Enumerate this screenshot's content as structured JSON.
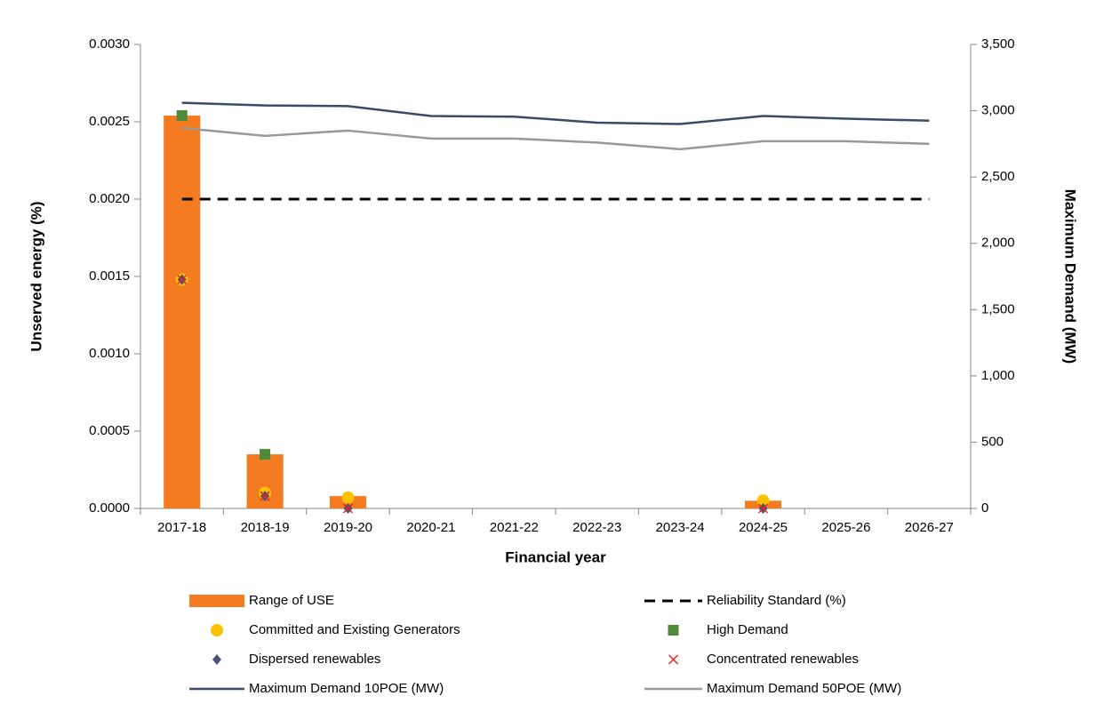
{
  "chart_data": {
    "type": "combo",
    "xlabel": "Financial year",
    "ylabel": "Unserved energy (%)",
    "y2label": "Maximum Demand (MW)",
    "categories": [
      "2017-18",
      "2018-19",
      "2019-20",
      "2020-21",
      "2021-22",
      "2022-23",
      "2023-24",
      "2024-25",
      "2025-26",
      "2026-27"
    ],
    "ylim": [
      0,
      0.003
    ],
    "yticks": [
      {
        "value": 0,
        "label": "0.0000"
      },
      {
        "value": 0.0005,
        "label": "0.0005"
      },
      {
        "value": 0.001,
        "label": "0.0010"
      },
      {
        "value": 0.0015,
        "label": "0.0015"
      },
      {
        "value": 0.002,
        "label": "0.0020"
      },
      {
        "value": 0.0025,
        "label": "0.0025"
      },
      {
        "value": 0.003,
        "label": "0.0030"
      }
    ],
    "y2lim": [
      0,
      3500
    ],
    "y2ticks": [
      0,
      500,
      {
        "value": 1000,
        "label": "1,000"
      },
      {
        "value": 1500,
        "label": "1,500"
      },
      {
        "value": 2000,
        "label": "2,000"
      },
      {
        "value": 2500,
        "label": "2,500"
      },
      {
        "value": 3000,
        "label": "3,000"
      },
      {
        "value": 3500,
        "label": "3,500"
      }
    ],
    "series": [
      {
        "name": "Range of USE",
        "type": "bar",
        "color": "#f47b20",
        "values": [
          0.00254,
          0.00035,
          8e-05,
          0,
          0,
          0,
          0,
          5e-05,
          0,
          0
        ]
      },
      {
        "name": "Reliability Standard (%)",
        "type": "line",
        "dash": true,
        "color": "#000000",
        "values": [
          0.002,
          0.002,
          0.002,
          0.002,
          0.002,
          0.002,
          0.002,
          0.002,
          0.002,
          0.002
        ]
      },
      {
        "name": "Committed and Existing Generators",
        "type": "scatter",
        "marker": "circle",
        "color": "#ffc000",
        "values": [
          0.00148,
          0.0001,
          7e-05,
          null,
          null,
          null,
          null,
          5e-05,
          null,
          null
        ]
      },
      {
        "name": "High Demand",
        "type": "scatter",
        "marker": "square",
        "color": "#4e8a3a",
        "values": [
          0.00254,
          0.00035,
          null,
          null,
          null,
          null,
          null,
          null,
          null,
          null
        ]
      },
      {
        "name": "Dispersed renewables",
        "type": "scatter",
        "marker": "diamond",
        "color": "#4a5478",
        "values": [
          0.00148,
          8e-05,
          0,
          null,
          null,
          null,
          null,
          0,
          null,
          null
        ]
      },
      {
        "name": "Concentrated renewables",
        "type": "scatter",
        "marker": "x",
        "color": "#e8251f",
        "values": [
          0.00148,
          8e-05,
          0,
          null,
          null,
          null,
          null,
          0,
          null,
          null
        ]
      },
      {
        "name": "Maximum Demand 10POE (MW)",
        "type": "line",
        "axis": "y2",
        "color": "#3b4a6b",
        "values": [
          3060,
          3040,
          3035,
          2960,
          2955,
          2910,
          2900,
          2960,
          2940,
          2925
        ]
      },
      {
        "name": "Maximum Demand 50POE (MW)",
        "type": "line",
        "axis": "y2",
        "color": "#999999",
        "values": [
          2870,
          2810,
          2850,
          2790,
          2790,
          2760,
          2710,
          2770,
          2770,
          2750
        ]
      }
    ]
  }
}
